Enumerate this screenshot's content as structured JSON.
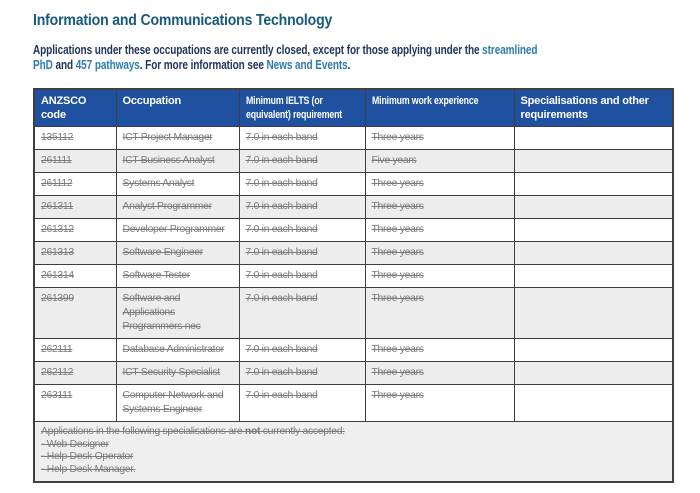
{
  "page": {
    "title": "Information and Communications Technology",
    "intro": {
      "text_before": "Applications under these occupations are currently closed, except for those applying under the ",
      "link_streamlined_line1": "streamlined",
      "link_streamlined_line2": "PhD",
      "text_and": " and ",
      "link_457": "457 pathways",
      "text_more": ". For more information see ",
      "link_news": "News and Events",
      "text_end": "."
    }
  },
  "table": {
    "headers": [
      "ANZSCO code",
      "Occupation",
      "Minimum IELTS (or equivalent) requirement",
      "Minimum work experience",
      "Specialisations and other requirements"
    ],
    "rows": [
      {
        "code": "135112",
        "occupation": "ICT Project Manager",
        "ielts": "7.0 in each band",
        "experience": "Three years",
        "specialisations": ""
      },
      {
        "code": "261111",
        "occupation": "ICT Business Analyst",
        "ielts": "7.0 in each band",
        "experience": "Five years",
        "specialisations": ""
      },
      {
        "code": "261112",
        "occupation": "Systems Analyst",
        "ielts": "7.0 in each band",
        "experience": "Three years",
        "specialisations": ""
      },
      {
        "code": "261311",
        "occupation": "Analyst Programmer",
        "ielts": "7.0 in each band",
        "experience": "Three years",
        "specialisations": ""
      },
      {
        "code": "261312",
        "occupation": "Developer Programmer",
        "ielts": "7.0 in each band",
        "experience": "Three years",
        "specialisations": ""
      },
      {
        "code": "261313",
        "occupation": "Software Engineer",
        "ielts": "7.0 in each band",
        "experience": "Three years",
        "specialisations": ""
      },
      {
        "code": "261314",
        "occupation": "Software Tester",
        "ielts": "7.0 in each band",
        "experience": "Three years",
        "specialisations": ""
      },
      {
        "code": "261399",
        "occupation": "Software and Applications Programmers nec",
        "ielts": "7.0 in each band",
        "experience": "Three years",
        "specialisations": ""
      },
      {
        "code": "262111",
        "occupation": "Database Administrator",
        "ielts": "7.0 in each band",
        "experience": "Three years",
        "specialisations": ""
      },
      {
        "code": "262112",
        "occupation": "ICT Security Specialist",
        "ielts": "7.0 in each band",
        "experience": "Three years",
        "specialisations": ""
      },
      {
        "code": "263111",
        "occupation": "Computer Network and Systems Engineer",
        "ielts": "7.0 in each band",
        "experience": "Three years",
        "specialisations": ""
      }
    ],
    "footer": {
      "line1_part1": "Applications in the following specialisations are ",
      "line1_bold": "not",
      "line1_part2": " currently accepted:",
      "items": [
        "- Web Designer",
        "- Help Desk Operator",
        "- Help Desk Manager."
      ]
    }
  },
  "colors": {
    "header_bg": "#2051A1",
    "header_text": "#FFFFFF",
    "table_border": "#3F3F3F",
    "row_bg": "#FFFFFF",
    "row_alt_bg": "#EDEDED",
    "footer_bg": "#EFEFEF",
    "struck_text": "#7B7B7B",
    "title": "#175A7C",
    "intro_text": "#20355C",
    "link": "#2E7CAE",
    "page_bottom_bg": "#E9E8E6"
  }
}
